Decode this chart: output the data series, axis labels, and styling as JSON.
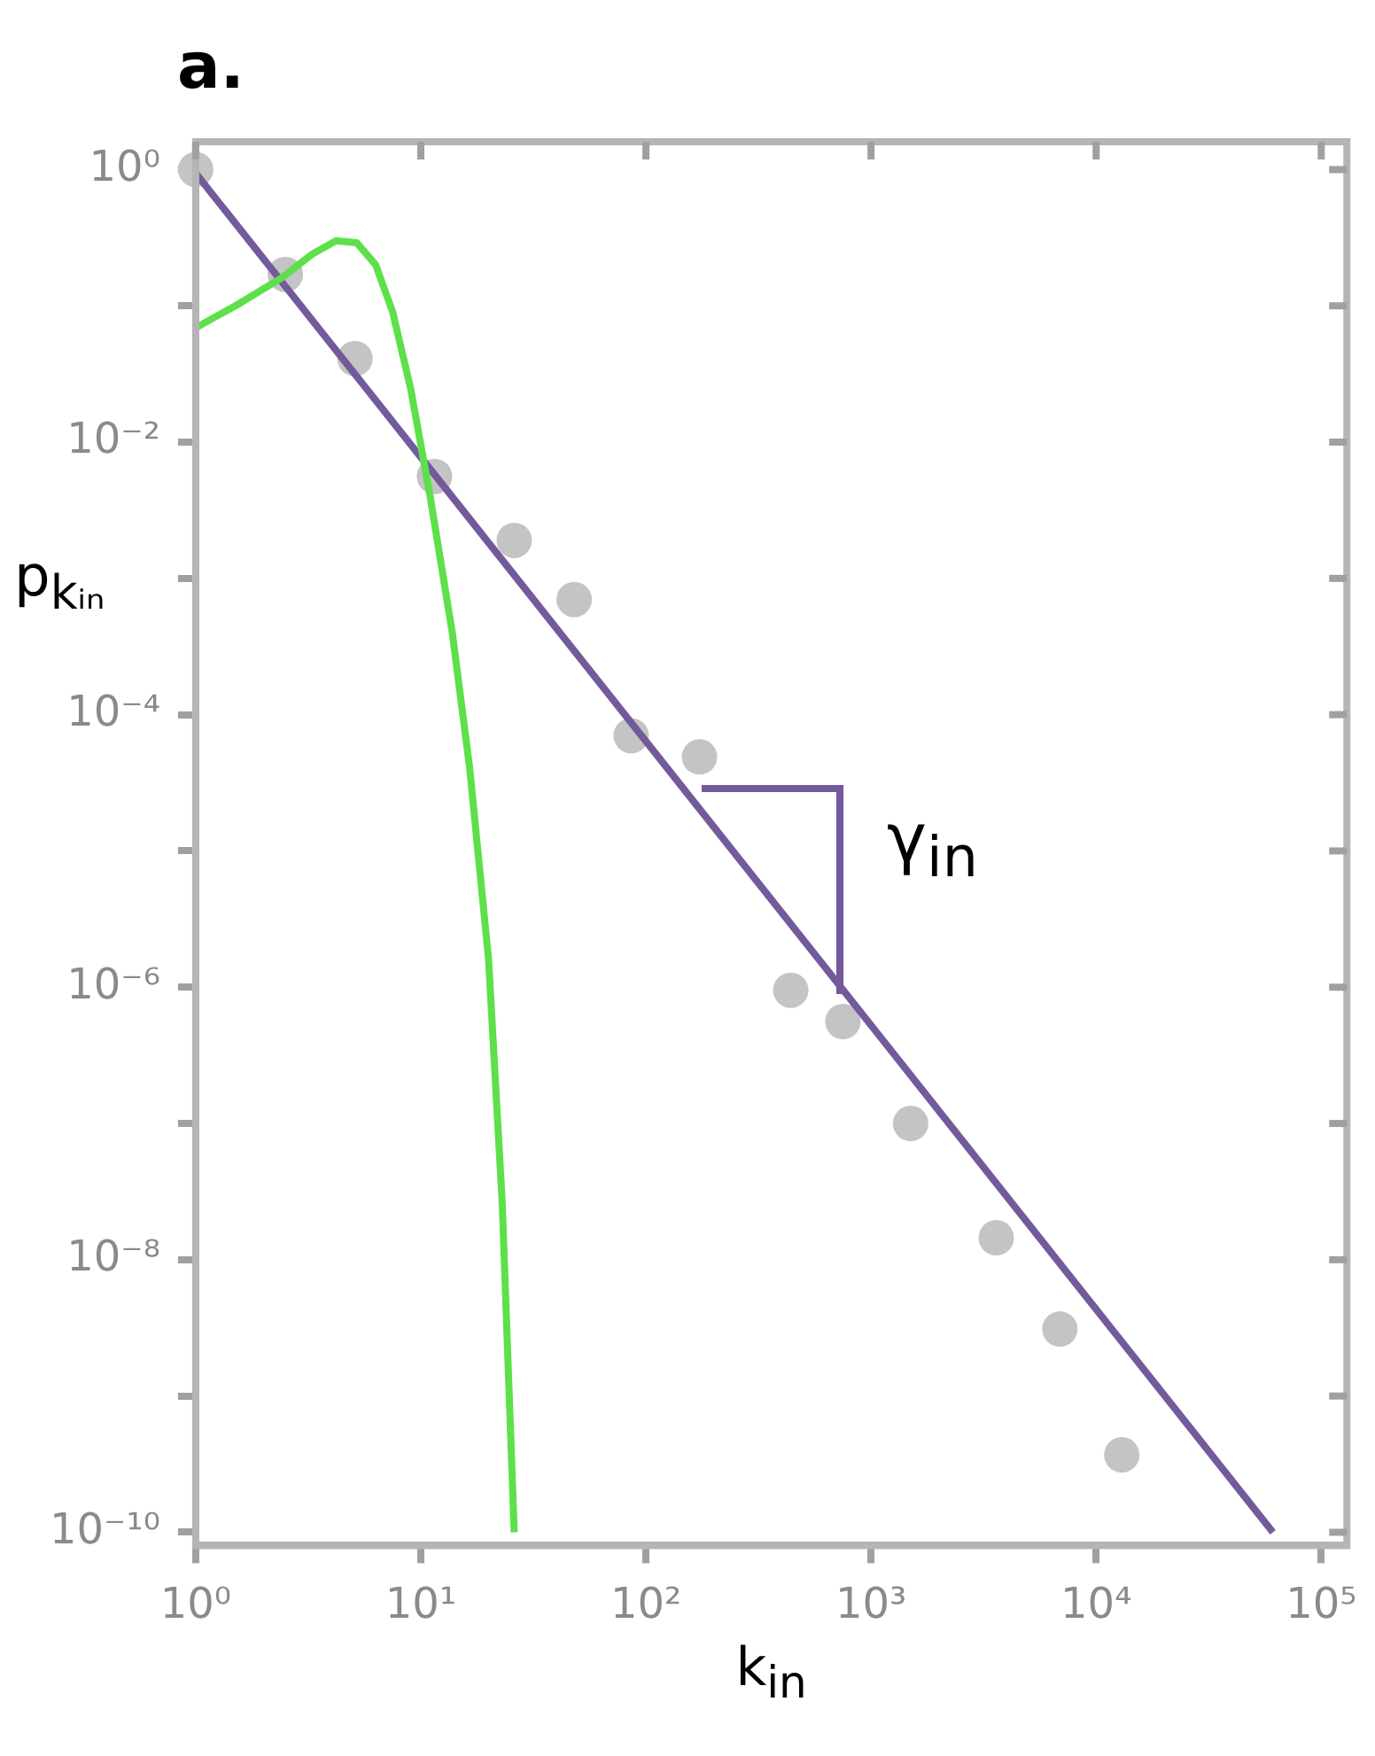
{
  "chart_data": {
    "type": "scatter",
    "title": "a.",
    "xlabel": "k$_{in}$",
    "ylabel": "p$_{kᵢₙ}$",
    "log": "xy",
    "grid": false,
    "legend": false,
    "xlim": [
      1,
      130000
    ],
    "ylim": [
      8e-11,
      1.6
    ],
    "xticks": [
      {
        "value": 1,
        "label": "10⁰"
      },
      {
        "value": 10,
        "label": "10¹"
      },
      {
        "value": 100,
        "label": "10²"
      },
      {
        "value": 1000,
        "label": "10³"
      },
      {
        "value": 10000,
        "label": "10⁴"
      },
      {
        "value": 100000,
        "label": "10⁵"
      }
    ],
    "yticks": [
      {
        "value": 1,
        "label": "10⁰"
      },
      {
        "value": 0.1,
        "label": null
      },
      {
        "value": 0.01,
        "label": "10⁻²"
      },
      {
        "value": 0.001,
        "label": null
      },
      {
        "value": 0.0001,
        "label": "10⁻⁴"
      },
      {
        "value": 1e-05,
        "label": null
      },
      {
        "value": 1e-06,
        "label": "10⁻⁶"
      },
      {
        "value": 1e-07,
        "label": null
      },
      {
        "value": 1e-08,
        "label": "10⁻⁸"
      },
      {
        "value": 1e-09,
        "label": null
      },
      {
        "value": 1e-10,
        "label": "10⁻¹⁰"
      }
    ],
    "annotations": [
      "γ$_{in}$"
    ],
    "series": [
      {
        "type": "line",
        "color": "#5de04a",
        "marker": "none",
        "line_style": "solid",
        "x": [
          1,
          1.5,
          2.4,
          3.3,
          4.2,
          5.2,
          6.3,
          7.5,
          9,
          11,
          13.8,
          16.5,
          20,
          23,
          26
        ],
        "values": [
          0.069,
          0.1,
          0.16,
          0.24,
          0.3,
          0.29,
          0.2,
          0.09,
          0.025,
          0.004,
          0.0004,
          4e-05,
          1.6e-06,
          2.6e-08,
          1e-10
        ]
      },
      {
        "type": "line",
        "color": "#735a9c",
        "marker": "none",
        "line_style": "solid",
        "x": [
          1,
          61000
        ],
        "values": [
          0.94,
          1e-10
        ]
      },
      {
        "color": "#c4c4c4",
        "marker": "circle",
        "x": [
          1,
          2.5,
          5.1,
          11.5,
          26,
          48,
          86,
          173,
          440,
          750,
          1500,
          3600,
          6900,
          13000
        ],
        "values": [
          1,
          0.17,
          0.041,
          0.0056,
          0.0019,
          0.0007,
          7e-05,
          4.9e-05,
          9.5e-07,
          5.6e-07,
          1e-07,
          1.45e-08,
          3.1e-09,
          3.7e-10
        ]
      }
    ]
  }
}
